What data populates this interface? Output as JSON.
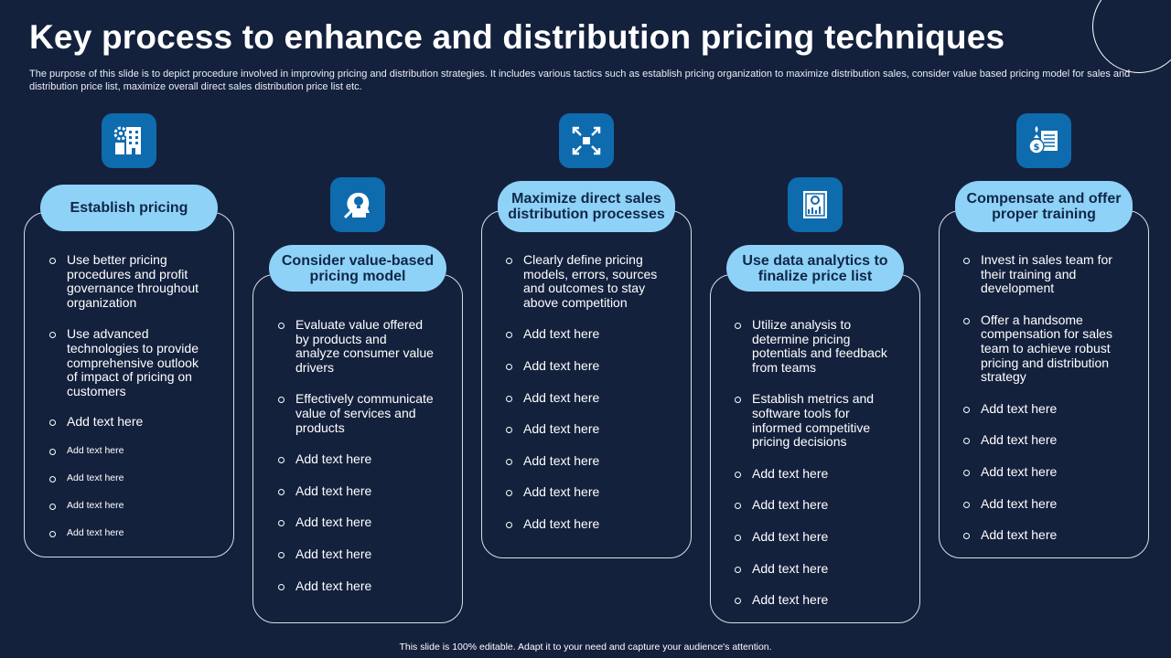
{
  "slide": {
    "title": "Key process to enhance and distribution pricing techniques",
    "description": "The purpose of this slide is to depict procedure involved in improving pricing and distribution strategies. It includes various tactics such as establish pricing organization to maximize distribution sales, consider value based pricing model for sales and distribution price list, maximize overall direct sales distribution price list etc.",
    "footer": "This slide is 100% editable.  Adapt it to your need and capture your audience's attention."
  },
  "colors": {
    "background": "#14213d",
    "icon_box": "#0e6bae",
    "pill": "#8fd2f7",
    "pill_text": "#0f2748"
  },
  "steps": [
    {
      "icon": "building-gear-icon",
      "heading": "Establish pricing",
      "items": [
        "Use better pricing procedures and profit governance throughout organization",
        "Use advanced technologies to provide comprehensive outlook of impact of pricing on customers",
        "Add text here",
        "Add text here",
        "Add text here",
        "Add text here",
        "Add text here"
      ]
    },
    {
      "icon": "head-idea-icon",
      "heading": "Consider value-based pricing model",
      "items": [
        "Evaluate value offered by products and analyze consumer value drivers",
        "Effectively communicate value of services and products",
        "Add text here",
        "Add text here",
        "Add text here",
        "Add text here",
        "Add text here"
      ]
    },
    {
      "icon": "expand-arrows-icon",
      "heading": "Maximize direct sales distribution processes",
      "items": [
        "Clearly define pricing models, errors, sources and outcomes to stay above competition",
        "Add text here",
        "Add text here",
        "Add text here",
        "Add text here",
        "Add text here",
        "Add text here",
        "Add text here"
      ]
    },
    {
      "icon": "analytics-report-icon",
      "heading": "Use data analytics to finalize price list",
      "items": [
        "Utilize analysis to determine pricing potentials and feedback from teams",
        "Establish metrics and software tools for informed competitive pricing decisions",
        "Add text here",
        "Add text here",
        "Add text here",
        "Add text here",
        "Add text here"
      ]
    },
    {
      "icon": "money-bag-document-icon",
      "heading": "Compensate and offer proper training",
      "items": [
        "Invest in sales team for their training and development",
        "Offer a handsome compensation for sales team to achieve robust pricing and distribution strategy",
        "Add text here",
        "Add text here",
        "Add text here",
        "Add text here",
        "Add text here"
      ]
    }
  ]
}
